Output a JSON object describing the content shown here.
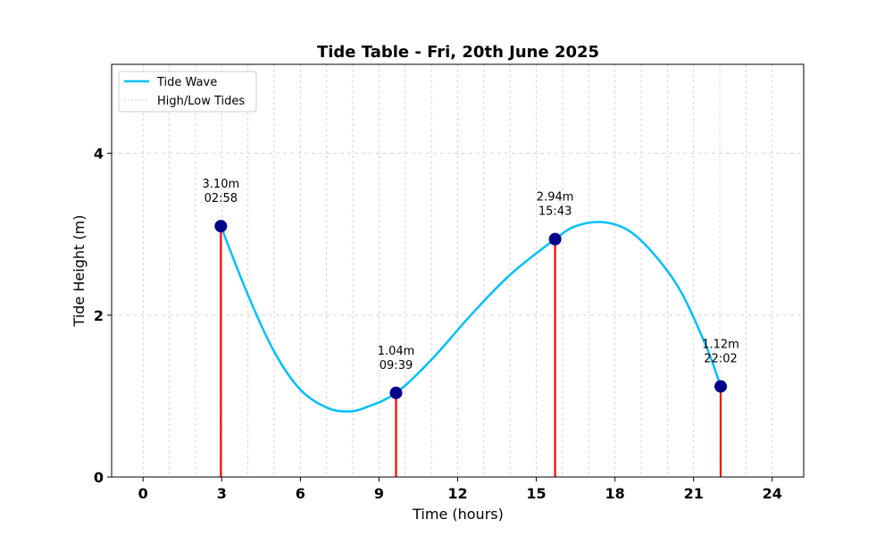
{
  "chart_data": {
    "type": "line",
    "title": "Tide Table - Fri, 20th June 2025",
    "xlabel": "Time (hours)",
    "ylabel": "Tide Height (m)",
    "xlim": [
      -1.2,
      25.2
    ],
    "ylim": [
      0,
      5.1
    ],
    "x_ticks": [
      0,
      3,
      6,
      9,
      12,
      15,
      18,
      21,
      24
    ],
    "x_tick_labels": [
      "0",
      "3",
      "6",
      "9",
      "12",
      "15",
      "18",
      "21",
      "24"
    ],
    "y_ticks": [
      0,
      2,
      4
    ],
    "y_tick_labels": [
      "0",
      "2",
      "4"
    ],
    "grid": true,
    "legend_position": "upper-left",
    "colors": {
      "wave": "#00bfff",
      "markers": "#00008b",
      "stems": "#ff0000",
      "grid": "#cccccc"
    },
    "series": [
      {
        "name": "Tide Wave",
        "x": [
          2.967,
          4,
          5,
          6,
          7,
          7.8,
          8.5,
          9.65,
          11,
          12.5,
          14,
          15.717,
          16.5,
          17.5,
          18.5,
          19.5,
          20.5,
          21.5,
          22.033
        ],
        "y": [
          3.1,
          2.25,
          1.55,
          1.08,
          0.86,
          0.81,
          0.86,
          1.04,
          1.45,
          2.0,
          2.5,
          2.94,
          3.1,
          3.15,
          3.05,
          2.75,
          2.3,
          1.6,
          1.12
        ]
      }
    ],
    "tides": [
      {
        "time": 2.967,
        "height": 3.1,
        "label": "3.10m\n02:58"
      },
      {
        "time": 9.65,
        "height": 1.04,
        "label": "1.04m\n09:39"
      },
      {
        "time": 15.717,
        "height": 2.94,
        "label": "2.94m\n15:43"
      },
      {
        "time": 22.033,
        "height": 1.12,
        "label": "1.12m\n22:02"
      }
    ],
    "legend": [
      "Tide Wave",
      "High/Low Tides"
    ]
  }
}
